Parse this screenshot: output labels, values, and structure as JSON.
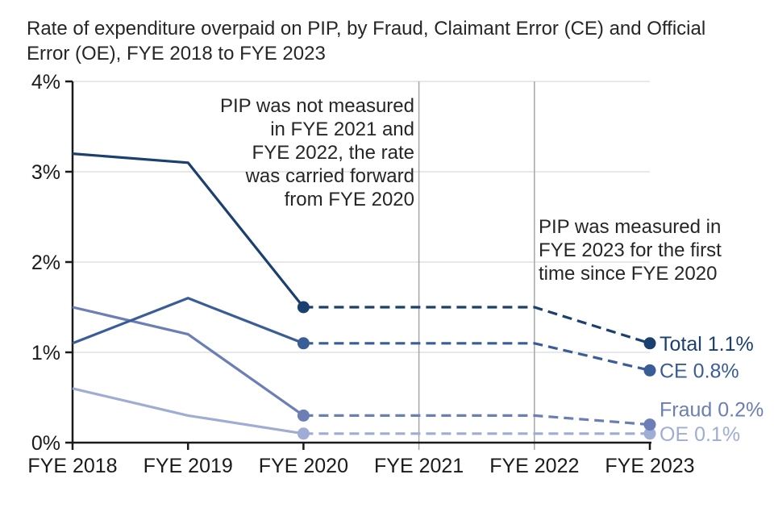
{
  "chart_data": {
    "type": "line",
    "title_lines": [
      "Rate of expenditure overpaid on PIP, by Fraud, Claimant Error (CE) and Official",
      "Error (OE), FYE 2018 to FYE 2023"
    ],
    "categories": [
      "FYE 2018",
      "FYE 2019",
      "FYE 2020",
      "FYE 2021",
      "FYE 2022",
      "FYE 2023"
    ],
    "y_tick_labels": [
      "0%",
      "1%",
      "2%",
      "3%",
      "4%"
    ],
    "ylim": [
      0,
      4
    ],
    "ylabel": "",
    "xlabel": "",
    "solid_measured_through": "FYE 2020",
    "marker_categories": [
      "FYE 2020",
      "FYE 2023"
    ],
    "grid": {
      "horizontal": true,
      "vertical_at": [
        "FYE 2021",
        "FYE 2022"
      ]
    },
    "series": [
      {
        "name": "OE",
        "color": "#9fadd5",
        "values": [
          0.6,
          0.3,
          0.1,
          0.1,
          0.1,
          0.1
        ],
        "end_label": "OE 0.1%"
      },
      {
        "name": "Fraud",
        "color": "#6b7eb5",
        "values": [
          1.5,
          1.2,
          0.3,
          0.3,
          0.3,
          0.2
        ],
        "end_label": "Fraud 0.2%"
      },
      {
        "name": "CE",
        "color": "#3a5d98",
        "values": [
          1.1,
          1.6,
          1.1,
          1.1,
          1.1,
          0.8
        ],
        "end_label": "CE 0.8%"
      },
      {
        "name": "Total",
        "color": "#1a4070",
        "values": [
          3.2,
          3.1,
          1.5,
          1.5,
          1.5,
          1.1
        ],
        "end_label": "Total 1.1%"
      }
    ],
    "annotations": [
      {
        "id": "not-measured",
        "align": "right",
        "lines": [
          "PIP was not measured",
          "in FYE 2021 and",
          "FYE 2022, the rate",
          "was carried forward",
          "from FYE 2020"
        ]
      },
      {
        "id": "measured",
        "align": "left",
        "lines": [
          "PIP was measured in",
          "FYE 2023 for the first",
          "time since FYE 2020"
        ]
      }
    ],
    "colors": {
      "axis": "#1a1a1a",
      "h_gridline": "#d9d9d9",
      "v_gridline": "#a6a6a6",
      "text": "#262626"
    }
  }
}
